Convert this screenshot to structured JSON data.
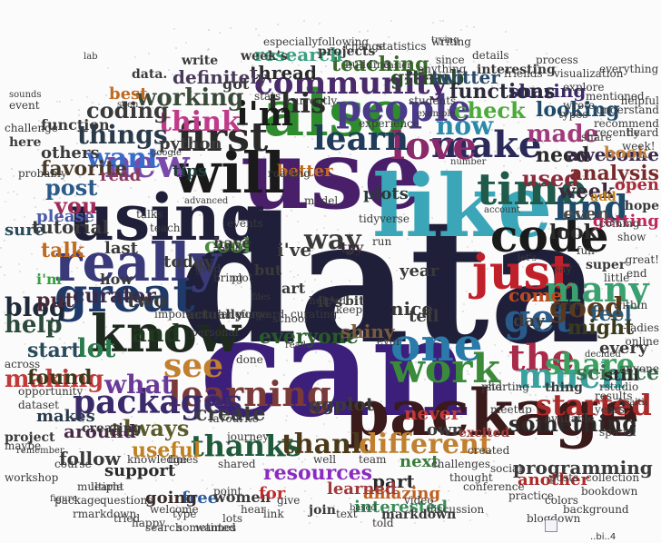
{
  "words": [
    {
      "text": "data",
      "color": "#1f1f3a"
    },
    {
      "text": "can",
      "color": "#3b1f7a"
    },
    {
      "text": "use",
      "color": "#4a1f6a"
    },
    {
      "text": "like",
      "color": "#3aa6b8"
    },
    {
      "text": "package",
      "color": "#3a1a1a"
    },
    {
      "text": "using",
      "color": "#1f1f3a"
    },
    {
      "text": "also",
      "color": "#2e8b2e"
    },
    {
      "text": "will",
      "color": "#1a1a1a"
    },
    {
      "text": "really",
      "color": "#3a3a7a"
    },
    {
      "text": "know",
      "color": "#1f2a1f"
    },
    {
      "text": "great",
      "color": "#1f3a6a"
    },
    {
      "text": "code",
      "color": "#1a1a1a"
    },
    {
      "text": "one",
      "color": "#2a7aaa"
    },
    {
      "text": "just",
      "color": "#c0202a"
    },
    {
      "text": "time",
      "color": "#1f5a4a"
    },
    {
      "text": "work",
      "color": "#3a8a3a"
    },
    {
      "text": "learning",
      "color": "#7a3a3a"
    },
    {
      "text": "make",
      "color": "#2a2a5a"
    },
    {
      "text": "love",
      "color": "#8a2a6a"
    },
    {
      "text": "first",
      "color": "#2a2a2a"
    },
    {
      "text": "new",
      "color": "#7a4aaa"
    },
    {
      "text": "get",
      "color": "#2a5a8a"
    },
    {
      "text": "the",
      "color": "#aa2a4a"
    },
    {
      "text": "see",
      "color": "#c08030"
    },
    {
      "text": "much",
      "color": "#3aa0a0"
    },
    {
      "text": "packages",
      "color": "#3a2a6a"
    },
    {
      "text": "many",
      "color": "#3aa070"
    },
    {
      "text": "find",
      "color": "#1f4a6a"
    },
    {
      "text": "learn",
      "color": "#1f3a5a"
    },
    {
      "text": "people",
      "color": "#4a3a8a"
    },
    {
      "text": "community",
      "color": "#4a2a6a"
    },
    {
      "text": "this",
      "color": "#2a2a2a"
    },
    {
      "text": "i'm",
      "color": "#1a1a1a"
    },
    {
      "text": "want",
      "color": "#3a6aca"
    },
    {
      "text": "now",
      "color": "#2a8aaa"
    },
    {
      "text": "good",
      "color": "#5a3a1a"
    },
    {
      "text": "started",
      "color": "#aa2a2a"
    },
    {
      "text": "share",
      "color": "#3aa060"
    },
    {
      "text": "what",
      "color": "#6a3a9a"
    },
    {
      "text": "lot",
      "color": "#2a7a4a"
    },
    {
      "text": "thanks",
      "color": "#1f5a3a"
    },
    {
      "text": "thank",
      "color": "#4a3a1a"
    },
    {
      "text": "different",
      "color": "#c08030"
    },
    {
      "text": "resources",
      "color": "#8a2ac0"
    },
    {
      "text": "way",
      "color": "#3a3a3a"
    },
    {
      "text": "think",
      "color": "#c03a8a"
    },
    {
      "text": "things",
      "color": "#2a3a4a"
    },
    {
      "text": "made",
      "color": "#a03a7a"
    },
    {
      "text": "used",
      "color": "#8a2a3a"
    },
    {
      "text": "look",
      "color": "#2a2a2a"
    },
    {
      "text": "blog",
      "color": "#1f2a3a"
    },
    {
      "text": "help",
      "color": "#2a4a3a"
    },
    {
      "text": "and",
      "color": "#1f3a1f"
    },
    {
      "text": "making",
      "color": "#c03a3a"
    },
    {
      "text": "always",
      "color": "#5a5a2a"
    },
    {
      "text": "science",
      "color": "#3a6a4a"
    },
    {
      "text": "something",
      "color": "#2a2a2a"
    },
    {
      "text": "working",
      "color": "#3a4a3a"
    },
    {
      "text": "check",
      "color": "#4aaa3a"
    },
    {
      "text": "analysis",
      "color": "#7a2a2a"
    },
    {
      "text": "post",
      "color": "#2a5a8a"
    },
    {
      "text": "you",
      "color": "#a02a5a"
    },
    {
      "text": "favorite",
      "color": "#4a3a2a"
    },
    {
      "text": "talk",
      "color": "#c06a20"
    },
    {
      "text": "feel",
      "color": "#2a5a7a"
    },
    {
      "text": "week",
      "color": "#3a2a3a"
    },
    {
      "text": "open",
      "color": "#aa2a3a"
    },
    {
      "text": "even",
      "color": "#4a4a4a"
    },
    {
      "text": "need",
      "color": "#2a2a2a"
    },
    {
      "text": "create",
      "color": "#3a3a3a"
    },
    {
      "text": "found",
      "color": "#3a3a1a"
    },
    {
      "text": "start",
      "color": "#2a4a5a"
    },
    {
      "text": "put",
      "color": "#4a2a3a"
    },
    {
      "text": "curator",
      "color": "#3a2a4a"
    },
    {
      "text": "two",
      "color": "#3a3a3a"
    },
    {
      "text": "useful",
      "color": "#c08020"
    },
    {
      "text": "github",
      "color": "#2a4a2a"
    },
    {
      "text": "teaching",
      "color": "#3a6a2a"
    },
    {
      "text": "thread",
      "color": "#2a2a2a"
    },
    {
      "text": "research",
      "color": "#3aa080"
    },
    {
      "text": "definitely",
      "color": "#4a3a5a"
    },
    {
      "text": "coding",
      "color": "#3a3a3a"
    },
    {
      "text": "looking",
      "color": "#1f4a6a"
    },
    {
      "text": "sharing",
      "color": "#3a2a6a"
    },
    {
      "text": "awesome",
      "color": "#3a2a4a"
    },
    {
      "text": "part",
      "color": "#2a2a2a"
    },
    {
      "text": "amazing",
      "color": "#c06020"
    },
    {
      "text": "learned",
      "color": "#a03a3a"
    },
    {
      "text": "interested",
      "color": "#3a8a5a"
    },
    {
      "text": "programming",
      "color": "#3a3a3a"
    },
    {
      "text": "another",
      "color": "#aa2a2a"
    },
    {
      "text": "everyone",
      "color": "#2a5a2a"
    },
    {
      "text": "tips",
      "color": "#1f3a3a"
    },
    {
      "text": "cool",
      "color": "#4a8a3a"
    },
    {
      "text": "best",
      "color": "#c06a20"
    },
    {
      "text": "twitter",
      "color": "#2a4a6a"
    },
    {
      "text": "functions",
      "color": "#2a2a3a"
    },
    {
      "text": "might",
      "color": "#3a3a1a"
    },
    {
      "text": "book",
      "color": "#c08040"
    },
    {
      "text": "getting",
      "color": "#c02a5a"
    },
    {
      "text": "still",
      "color": "#2a2a2a"
    },
    {
      "text": "every",
      "color": "#3a3a3a"
    },
    {
      "text": "around",
      "color": "#4a2a4a"
    },
    {
      "text": "never",
      "color": "#c03a3a"
    },
    {
      "text": "free",
      "color": "#2a5a9a"
    },
    {
      "text": "women",
      "color": "#3a3a3a"
    },
    {
      "text": "going",
      "color": "#3a2a2a"
    },
    {
      "text": "support",
      "color": "#2a2a2a"
    },
    {
      "text": "today",
      "color": "#3a3a3a"
    },
    {
      "text": "last",
      "color": "#3a3a3a"
    },
    {
      "text": "come",
      "color": "#c04a20"
    },
    {
      "text": "makes",
      "color": "#2a3a4a"
    },
    {
      "text": "follow",
      "color": "#3a3a3a"
    },
    {
      "text": "shiny",
      "color": "#7a5a3a"
    },
    {
      "text": "tell",
      "color": "#3a3a3a"
    },
    {
      "text": "day",
      "color": "#3a3a3a"
    },
    {
      "text": "sure",
      "color": "#2a4a5a"
    },
    {
      "text": "please",
      "color": "#4a5aaa"
    },
    {
      "text": "nice",
      "color": "#3a3a3a"
    },
    {
      "text": "for",
      "color": "#c02a2a"
    },
    {
      "text": "ggplot",
      "color": "#3a3a3a"
    },
    {
      "text": "next",
      "color": "#3a7a3a"
    },
    {
      "text": "python",
      "color": "#3a3a3a"
    },
    {
      "text": "read",
      "color": "#8a3a5a"
    },
    {
      "text": "better",
      "color": "#c06a20"
    },
    {
      "text": "year",
      "color": "#3a3a3a"
    },
    {
      "text": "plots",
      "color": "#2a3a3a"
    },
    {
      "text": "i've",
      "color": "#3a3a3a"
    },
    {
      "text": "try",
      "color": "#3a2a3a"
    },
    {
      "text": "own",
      "color": "#3a3a3a"
    },
    {
      "text": "excited",
      "color": "#a03a3a"
    },
    {
      "text": "thing",
      "color": "#3a3a3a"
    },
    {
      "text": "join",
      "color": "#3a3a3a"
    },
    {
      "text": "markdown",
      "color": "#3a3a3a"
    },
    {
      "text": "workshop",
      "color": "#3a3a3a"
    },
    {
      "text": "project",
      "color": "#3a3a3a"
    },
    {
      "text": "maybe",
      "color": "#3a3a3a"
    },
    {
      "text": "creating",
      "color": "#3a3a3a"
    },
    {
      "text": "others",
      "color": "#3a3a3a"
    },
    {
      "text": "here",
      "color": "#3a3a3a"
    },
    {
      "text": "function",
      "color": "#3a3a3a"
    },
    {
      "text": "tutorial",
      "color": "#3a3a3a"
    },
    {
      "text": "i'm",
      "color": "#3aa040"
    },
    {
      "text": "how",
      "color": "#3a3a3a"
    },
    {
      "text": "but",
      "color": "#3a3a3a"
    },
    {
      "text": "it's",
      "color": "#3a3a3a"
    },
    {
      "text": "bit",
      "color": "#3a3a3a"
    },
    {
      "text": "art",
      "color": "#3a3a3a"
    },
    {
      "text": "got",
      "color": "#3a3a3a"
    },
    {
      "text": "have",
      "color": "#3a3a3a"
    },
    {
      "text": "add",
      "color": "#c08020"
    },
    {
      "text": "super",
      "color": "#3a3a3a"
    },
    {
      "text": "within",
      "color": "#3a3a3a"
    },
    {
      "text": "hope",
      "color": "#3a3a3a"
    },
    {
      "text": "anyone",
      "color": "#3a3a3a"
    },
    {
      "text": "write",
      "color": "#3a3a3a"
    },
    {
      "text": "data.",
      "color": "#3a3a3a"
    },
    {
      "text": "week's",
      "color": "#3a3a3a"
    },
    {
      "text": "projects",
      "color": "#3a3a3a"
    },
    {
      "text": "currently",
      "color": "#3a3a3a"
    },
    {
      "text": "experience",
      "color": "#3a3a3a"
    },
    {
      "text": "students",
      "color": "#3a3a3a"
    },
    {
      "text": "since",
      "color": "#3a3a3a"
    },
    {
      "text": "point",
      "color": "#3a3a3a"
    },
    {
      "text": "favourite",
      "color": "#3a3a3a"
    },
    {
      "text": "r-ladies",
      "color": "#3a3a3a"
    },
    {
      "text": "results",
      "color": "#3a3a3a"
    },
    {
      "text": "posts",
      "color": "#3a3a3a"
    },
    {
      "text": "online",
      "color": "#3a3a3a"
    },
    {
      "text": "rstudio",
      "color": "#3a3a3a"
    },
    {
      "text": "years",
      "color": "#3a3a3a"
    },
    {
      "text": "spatial",
      "color": "#3a3a3a"
    },
    {
      "text": "sometimes",
      "color": "#3a3a3a"
    },
    {
      "text": "knowledge",
      "color": "#3a3a3a"
    },
    {
      "text": "shared",
      "color": "#3a3a3a"
    },
    {
      "text": "actually",
      "color": "#3a3a3a"
    },
    {
      "text": "important",
      "color": "#3a3a3a"
    },
    {
      "text": "course",
      "color": "#3a3a3a"
    },
    {
      "text": "social",
      "color": "#3a3a3a"
    },
    {
      "text": "meetup",
      "color": "#3a3a3a"
    },
    {
      "text": "starting",
      "color": "#3a3a3a"
    },
    {
      "text": "available",
      "color": "#3a3a3a"
    },
    {
      "text": "tried",
      "color": "#3a3a3a"
    },
    {
      "text": "learnt",
      "color": "#3a3a3a"
    },
    {
      "text": "event",
      "color": "#3a3a3a"
    },
    {
      "text": "sounds",
      "color": "#3a3a3a"
    },
    {
      "text": "writing",
      "color": "#3a3a3a"
    },
    {
      "text": "interesting",
      "color": "#3a3a3a"
    },
    {
      "text": "understand",
      "color": "#3a3a3a"
    },
    {
      "text": "helpful",
      "color": "#3a3a3a"
    },
    {
      "text": "recently",
      "color": "#3a3a3a"
    },
    {
      "text": "explore",
      "color": "#3a3a3a"
    },
    {
      "text": "visualization",
      "color": "#3a3a3a"
    },
    {
      "text": "everything",
      "color": "#3a3a3a"
    },
    {
      "text": "trying",
      "color": "#3a3a3a"
    },
    {
      "text": "following",
      "color": "#3a3a3a"
    },
    {
      "text": "discussion",
      "color": "#3a3a3a"
    },
    {
      "text": "conference",
      "color": "#3a3a3a"
    },
    {
      "text": "anything",
      "color": "#3a3a3a"
    },
    {
      "text": "probably",
      "color": "#3a3a3a"
    },
    {
      "text": "challenge",
      "color": "#3a3a3a"
    },
    {
      "text": "statistics",
      "color": "#3a3a3a"
    },
    {
      "text": "building",
      "color": "#3a3a3a"
    },
    {
      "text": "especially",
      "color": "#3a3a3a"
    },
    {
      "text": "journey",
      "color": "#3a3a3a"
    },
    {
      "text": "helped",
      "color": "#3a3a3a"
    },
    {
      "text": "curating",
      "color": "#3a3a3a"
    },
    {
      "text": "reading",
      "color": "#3a3a3a"
    },
    {
      "text": "events",
      "color": "#3a3a3a"
    },
    {
      "text": "language",
      "color": "#3a3a3a"
    },
    {
      "text": "forward",
      "color": "#3a3a3a"
    },
    {
      "text": "personal",
      "color": "#3a3a3a"
    },
    {
      "text": "school",
      "color": "#3a3a3a"
    },
    {
      "text": "done",
      "color": "#3a3a3a"
    },
    {
      "text": "keep",
      "color": "#3a3a3a"
    },
    {
      "text": "run",
      "color": "#3a3a3a"
    },
    {
      "text": "ever",
      "color": "#3a3a3a"
    },
    {
      "text": "phd",
      "color": "#3a3a3a"
    },
    {
      "text": "well",
      "color": "#3a3a3a"
    },
    {
      "text": "end",
      "color": "#3a3a3a"
    },
    {
      "text": "fun",
      "color": "#3a3a3a"
    },
    {
      "text": "say",
      "color": "#3a3a3a"
    },
    {
      "text": "little",
      "color": "#3a3a3a"
    },
    {
      "text": "show",
      "color": "#3a3a3a"
    },
    {
      "text": "plot",
      "color": "#3a3a3a"
    },
    {
      "text": "team",
      "color": "#3a3a3a"
    },
    {
      "text": "text",
      "color": "#3a3a3a"
    },
    {
      "text": "told",
      "color": "#3a3a3a"
    },
    {
      "text": "video",
      "color": "#3a3a3a"
    },
    {
      "text": "link",
      "color": "#3a3a3a"
    },
    {
      "text": "give",
      "color": "#3a3a3a"
    },
    {
      "text": "lots",
      "color": "#3a3a3a"
    },
    {
      "text": "hear",
      "color": "#3a3a3a"
    },
    {
      "text": "type",
      "color": "#3a3a3a"
    },
    {
      "text": "search",
      "color": "#3a3a3a"
    },
    {
      "text": "wanted",
      "color": "#3a3a3a"
    },
    {
      "text": "happy",
      "color": "#3a3a3a"
    },
    {
      "text": "welcome",
      "color": "#3a3a3a"
    },
    {
      "text": "questions",
      "color": "#3a3a3a"
    },
    {
      "text": "multiple",
      "color": "#3a3a3a"
    },
    {
      "text": "package.",
      "color": "#3a3a3a"
    },
    {
      "text": "rmarkdown",
      "color": "#3a3a3a"
    },
    {
      "text": "practice",
      "color": "#3a3a3a"
    },
    {
      "text": "colors",
      "color": "#3a3a3a"
    },
    {
      "text": "background",
      "color": "#3a3a3a"
    },
    {
      "text": "blogdown",
      "color": "#3a3a3a"
    },
    {
      "text": "bookdown",
      "color": "#3a3a3a"
    },
    {
      "text": "collection",
      "color": "#3a3a3a"
    },
    {
      "text": "challenges",
      "color": "#3a3a3a"
    },
    {
      "text": "thought",
      "color": "#3a3a3a"
    },
    {
      "text": "created",
      "color": "#3a3a3a"
    },
    {
      "text": "change",
      "color": "#3a3a3a"
    },
    {
      "text": "friends",
      "color": "#3a3a3a"
    },
    {
      "text": "process",
      "color": "#3a3a3a"
    },
    {
      "text": "details",
      "color": "#3a3a3a"
    },
    {
      "text": "opportunity",
      "color": "#3a3a3a"
    },
    {
      "text": "dataset",
      "color": "#3a3a3a"
    },
    {
      "text": "across",
      "color": "#3a3a3a"
    },
    {
      "text": "heard",
      "color": "#3a3a3a"
    },
    {
      "text": "recommend",
      "color": "#3a3a3a"
    },
    {
      "text": "week!",
      "color": "#3a3a3a"
    },
    {
      "text": "great!",
      "color": "#3a3a3a"
    },
    {
      "text": "wrote",
      "color": "#3a3a3a"
    },
    {
      "text": "types",
      "color": "#3a3a3a"
    },
    {
      "text": "mentioned",
      "color": "#3a3a3a"
    },
    {
      "text": "coming",
      "color": "#3a3a3a"
    },
    {
      "text": "share",
      "color": "#3a3a3a"
    },
    {
      "text": "model",
      "color": "#3a3a3a"
    },
    {
      "text": "tidyverse",
      "color": "#3a3a3a"
    },
    {
      "text": "grad",
      "color": "#3a3a3a"
    },
    {
      "text": "talks",
      "color": "#3a3a3a"
    },
    {
      "text": "teach",
      "color": "#3a3a3a"
    },
    {
      "text": "bring",
      "color": "#3a3a3a"
    },
    {
      "text": "times",
      "color": "#3a3a3a"
    },
    {
      "text": "stats",
      "color": "#3a3a3a"
    },
    {
      "text": "based",
      "color": "#3a3a3a"
    },
    {
      "text": "easier",
      "color": "#3a3a3a"
    },
    {
      "text": "example",
      "color": "#3a3a3a"
    },
    {
      "text": "number",
      "color": "#3a3a3a"
    },
    {
      "text": "account",
      "color": "#3a3a3a"
    },
    {
      "text": "let's",
      "color": "#3a3a3a"
    },
    {
      "text": "worked",
      "color": "#3a3a3a"
    },
    {
      "text": "decided",
      "color": "#3a3a3a"
    },
    {
      "text": "health",
      "color": "#3a3a3a"
    },
    {
      "text": "remember",
      "color": "#3a3a3a"
    },
    {
      "text": "figure",
      "color": "#3a3a3a"
    },
    {
      "text": "lab",
      "color": "#3a3a3a"
    },
    {
      "text": "seen",
      "color": "#3a3a3a"
    },
    {
      "text": "google",
      "color": "#3a3a3a"
    },
    {
      "text": "advanced",
      "color": "#3a3a3a"
    },
    {
      "text": "series",
      "color": "#3a3a3a"
    },
    {
      "text": "files",
      "color": "#3a3a3a"
    },
    {
      "text": "read",
      "color": "#3a3a3a"
    }
  ],
  "footer_text": "..bi..4"
}
